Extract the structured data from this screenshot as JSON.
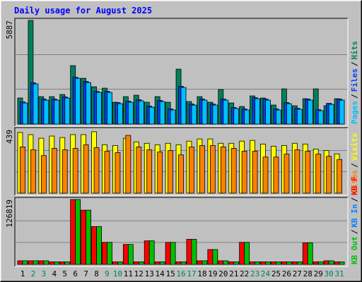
{
  "chart_data": [
    {
      "type": "bar",
      "title": "Daily usage for August 2025",
      "categories": [
        "1",
        "2",
        "3",
        "4",
        "5",
        "6",
        "7",
        "8",
        "9",
        "10",
        "11",
        "12",
        "13",
        "14",
        "15",
        "16",
        "17",
        "18",
        "19",
        "20",
        "21",
        "22",
        "23",
        "24",
        "25",
        "26",
        "27",
        "28",
        "29",
        "30",
        "31"
      ],
      "weekend_color": "#00805c",
      "weekend_days": [
        "2",
        "3",
        "9",
        "10",
        "16",
        "17",
        "23",
        "24",
        "30",
        "31"
      ],
      "legend_separator": "/",
      "ylim": [
        0,
        5887
      ],
      "yticks": [
        5887
      ],
      "series": [
        {
          "name": "Hits",
          "color": "#00805c",
          "values": [
            1480,
            5887,
            1560,
            1560,
            1680,
            3320,
            2600,
            2120,
            2040,
            1240,
            1560,
            1640,
            1240,
            1560,
            1240,
            3120,
            1280,
            1560,
            1240,
            1960,
            1200,
            1000,
            1600,
            1480,
            1080,
            2000,
            1040,
            1440,
            2000,
            1040,
            1440
          ]
        },
        {
          "name": "Files",
          "color": "#0040ff",
          "values": [
            1260,
            2340,
            1420,
            1420,
            1540,
            2660,
            2420,
            1860,
            1860,
            1220,
            1300,
            1380,
            1020,
            1340,
            860,
            2140,
            1140,
            1420,
            1140,
            1420,
            940,
            860,
            1500,
            1420,
            860,
            1220,
            900,
            1420,
            820,
            1180,
            1420
          ]
        },
        {
          "name": "Pages",
          "color": "#00c0ff",
          "values": [
            1200,
            2280,
            1360,
            1360,
            1480,
            2600,
            2360,
            1800,
            1800,
            1160,
            1240,
            1320,
            960,
            1280,
            800,
            2080,
            1080,
            1360,
            1080,
            1360,
            880,
            800,
            1440,
            1360,
            800,
            1160,
            840,
            1360,
            760,
            1120,
            1360
          ]
        }
      ]
    },
    {
      "type": "bar",
      "ylim": [
        0,
        439
      ],
      "yticks": [
        439
      ],
      "series": [
        {
          "name": "Visits",
          "color": "#ffff00",
          "values": [
            420,
            405,
            380,
            395,
            385,
            405,
            405,
            425,
            335,
            330,
            380,
            355,
            345,
            335,
            345,
            335,
            360,
            375,
            375,
            345,
            345,
            360,
            365,
            340,
            325,
            330,
            345,
            340,
            305,
            295,
            272
          ]
        },
        {
          "name": "Sites",
          "color": "#ff8000",
          "values": [
            320,
            300,
            260,
            310,
            300,
            310,
            335,
            315,
            290,
            280,
            400,
            320,
            300,
            285,
            295,
            265,
            320,
            330,
            330,
            320,
            310,
            290,
            290,
            250,
            250,
            270,
            300,
            290,
            270,
            255,
            233
          ]
        }
      ]
    },
    {
      "type": "bar",
      "ylim": [
        0,
        126819
      ],
      "yticks": [
        126819
      ],
      "series": [
        {
          "name": "KB F",
          "color": "#ff0000",
          "values": [
            7000,
            7000,
            7000,
            5000,
            5000,
            126819,
            106000,
            74000,
            43000,
            5000,
            39000,
            5000,
            46000,
            5000,
            43000,
            5000,
            49000,
            7000,
            29000,
            7000,
            5000,
            43000,
            5000,
            5000,
            5000,
            5000,
            5000,
            42000,
            5000,
            7000,
            5000
          ]
        },
        {
          "name": "KB In",
          "color": "#0080ff",
          "values": [
            0,
            0,
            0,
            0,
            0,
            0,
            0,
            0,
            0,
            0,
            0,
            0,
            0,
            0,
            0,
            0,
            0,
            0,
            0,
            0,
            0,
            0,
            0,
            0,
            0,
            0,
            0,
            0,
            0,
            0,
            0
          ]
        },
        {
          "name": "KB Out",
          "color": "#00c000",
          "values": [
            7000,
            7000,
            7000,
            5000,
            5000,
            126819,
            106000,
            74000,
            43000,
            5000,
            39000,
            5000,
            46000,
            5000,
            43000,
            5000,
            49000,
            7000,
            29000,
            7000,
            5000,
            43000,
            5000,
            5000,
            5000,
            5000,
            5000,
            42000,
            5000,
            7000,
            5000
          ]
        }
      ]
    }
  ]
}
